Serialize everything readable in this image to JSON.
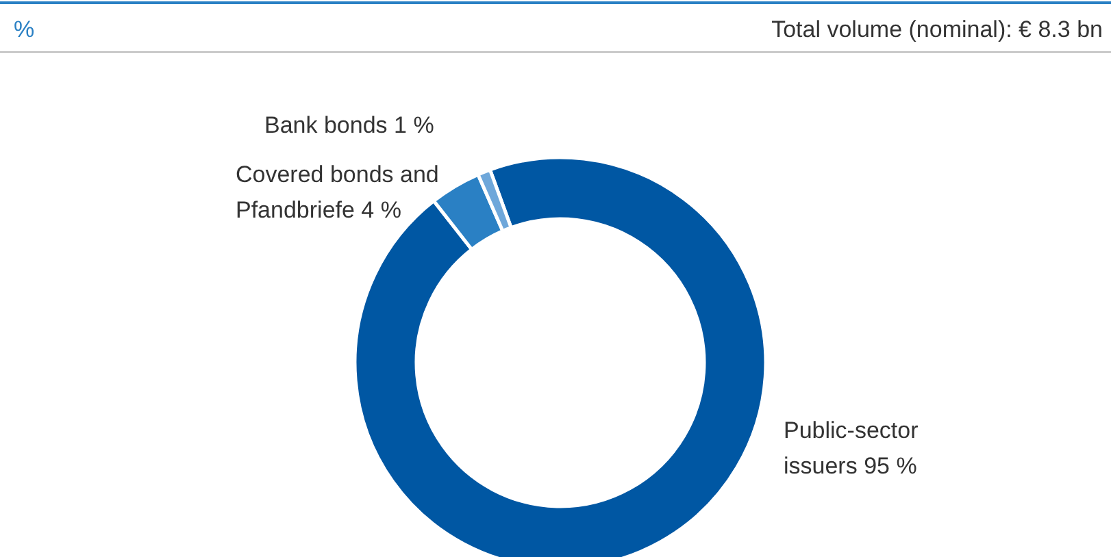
{
  "chart_data": {
    "type": "donut",
    "ylabel": "%",
    "subtitle": "Total volume (nominal): € 8.3 bn",
    "categories": [
      "Public-sector issuers",
      "Covered bonds and Pfandbriefe",
      "Bank bonds"
    ],
    "values": [
      95,
      4,
      1
    ],
    "colors": [
      "#0057a3",
      "#2a80c4",
      "#6ea7da"
    ],
    "value_labels": [
      "95 %",
      "4 %",
      "1 %"
    ]
  }
}
